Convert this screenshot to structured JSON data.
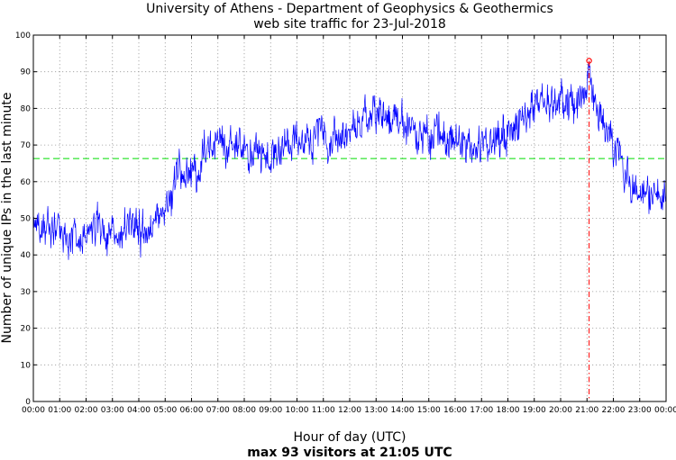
{
  "chart_data": {
    "type": "line",
    "title": "University of Athens - Department of Geophysics & Geothermics",
    "subtitle": "web site traffic for 23-Jul-2018",
    "xlabel": "Hour of day (UTC)",
    "ylabel": "Number of unique IPs in the last minute",
    "annotation": "max 93 visitors at 21:05 UTC",
    "xlim": [
      0,
      24
    ],
    "ylim": [
      0,
      100
    ],
    "grid": true,
    "x_ticks": [
      "00:00",
      "01:00",
      "02:00",
      "03:00",
      "04:00",
      "05:00",
      "06:00",
      "07:00",
      "08:00",
      "09:00",
      "10:00",
      "11:00",
      "12:00",
      "13:00",
      "14:00",
      "15:00",
      "16:00",
      "17:00",
      "18:00",
      "19:00",
      "20:00",
      "21:00",
      "22:00",
      "23:00",
      "00:00"
    ],
    "y_ticks": [
      0,
      10,
      20,
      30,
      40,
      50,
      60,
      70,
      80,
      90,
      100
    ],
    "mean_line": 66.3,
    "max_point": {
      "x": 21.08,
      "y": 93,
      "time": "21:05"
    },
    "series": [
      {
        "color": "#0000ff",
        "x": [
          0,
          0.5,
          1,
          1.5,
          2,
          2.5,
          3,
          3.5,
          4,
          4.5,
          4.75,
          5,
          5.25,
          5.5,
          5.75,
          6,
          6.25,
          6.5,
          7,
          7.5,
          8,
          8.5,
          9,
          9.5,
          10,
          10.5,
          11,
          11.5,
          12,
          12.5,
          13,
          13.5,
          14,
          14.5,
          15,
          15.5,
          16,
          16.5,
          17,
          17.5,
          18,
          18.5,
          19,
          19.5,
          20,
          20.5,
          21,
          21.08,
          21.25,
          21.5,
          22,
          22.5,
          23,
          23.5,
          24
        ],
        "values": [
          48,
          48,
          46,
          45,
          46,
          47,
          46,
          47,
          47,
          48,
          50,
          53,
          57,
          61,
          63,
          61,
          63,
          68,
          70,
          70,
          69,
          67,
          68,
          70,
          71,
          70,
          71,
          72,
          74,
          77,
          79,
          77,
          76,
          73,
          74,
          73,
          71,
          70,
          69,
          70,
          73,
          76,
          80,
          82,
          82,
          81,
          86,
          93,
          82,
          78,
          70,
          62,
          58,
          56,
          57
        ]
      }
    ],
    "colors": {
      "series": "#0000ff",
      "mean": "#00dd00",
      "max": "#ff0000",
      "grid": "#9a9a9a"
    }
  }
}
